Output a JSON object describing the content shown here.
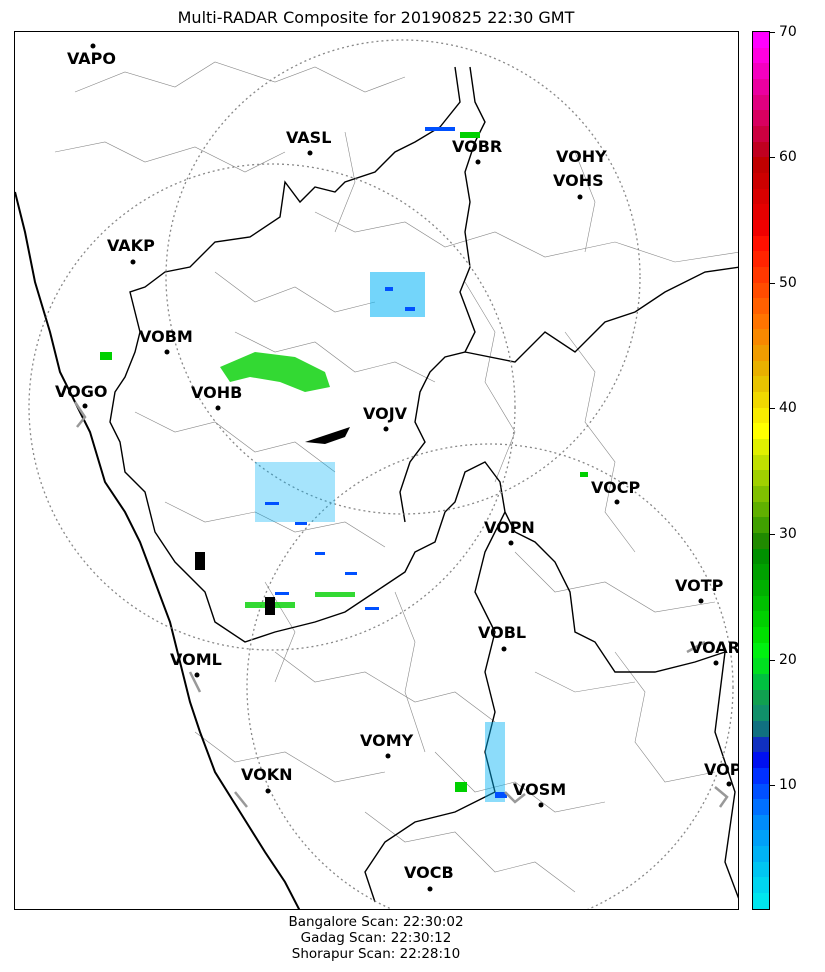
{
  "title": "Multi-RADAR Composite for 20190825 22:30 GMT",
  "stations": [
    {
      "name": "VAPO"
    },
    {
      "name": "VASL"
    },
    {
      "name": "VOBR"
    },
    {
      "name": "VOHY"
    },
    {
      "name": "VOHS"
    },
    {
      "name": "VAKP"
    },
    {
      "name": "VOBM"
    },
    {
      "name": "VOGO"
    },
    {
      "name": "VOHB"
    },
    {
      "name": "VOJV"
    },
    {
      "name": "VOCP"
    },
    {
      "name": "VOPN"
    },
    {
      "name": "VOTP"
    },
    {
      "name": "VOBL"
    },
    {
      "name": "VOAR"
    },
    {
      "name": "VOML"
    },
    {
      "name": "VOMY"
    },
    {
      "name": "VOKN"
    },
    {
      "name": "VOSM"
    },
    {
      "name": "VOPC"
    },
    {
      "name": "VOCB"
    }
  ],
  "colorbar": {
    "min": 0,
    "max": 70,
    "ticks": [
      "10",
      "20",
      "30",
      "40",
      "50",
      "60",
      "70"
    ],
    "colors": [
      "#00e5ee",
      "#00d5f0",
      "#00c5f2",
      "#00b2f5",
      "#00a0f8",
      "#008cfb",
      "#0070ff",
      "#0050ff",
      "#0030ff",
      "#0010f0",
      "#1030c0",
      "#107080",
      "#10906a",
      "#10a050",
      "#00c040",
      "#00e020",
      "#00f010",
      "#00e000",
      "#00d000",
      "#00c000",
      "#00b000",
      "#00a000",
      "#009000",
      "#208a00",
      "#40a000",
      "#60b000",
      "#80c000",
      "#a0d000",
      "#c0e000",
      "#e0f000",
      "#ffff00",
      "#f8ec00",
      "#f0d800",
      "#e8c400",
      "#e8b000",
      "#f09c00",
      "#f88800",
      "#ff7400",
      "#ff6000",
      "#ff4c00",
      "#ff3800",
      "#ff2400",
      "#ff1000",
      "#f00000",
      "#e40000",
      "#d80000",
      "#cc0000",
      "#c00000",
      "#c00020",
      "#cc0040",
      "#d80060",
      "#e00080",
      "#ea00a0",
      "#f400c0",
      "#ff00e0",
      "#ff00ff"
    ]
  },
  "footer": [
    "Bangalore Scan: 22:30:02",
    "Gadag Scan: 22:30:12",
    "Shorapur Scan: 22:28:10"
  ]
}
